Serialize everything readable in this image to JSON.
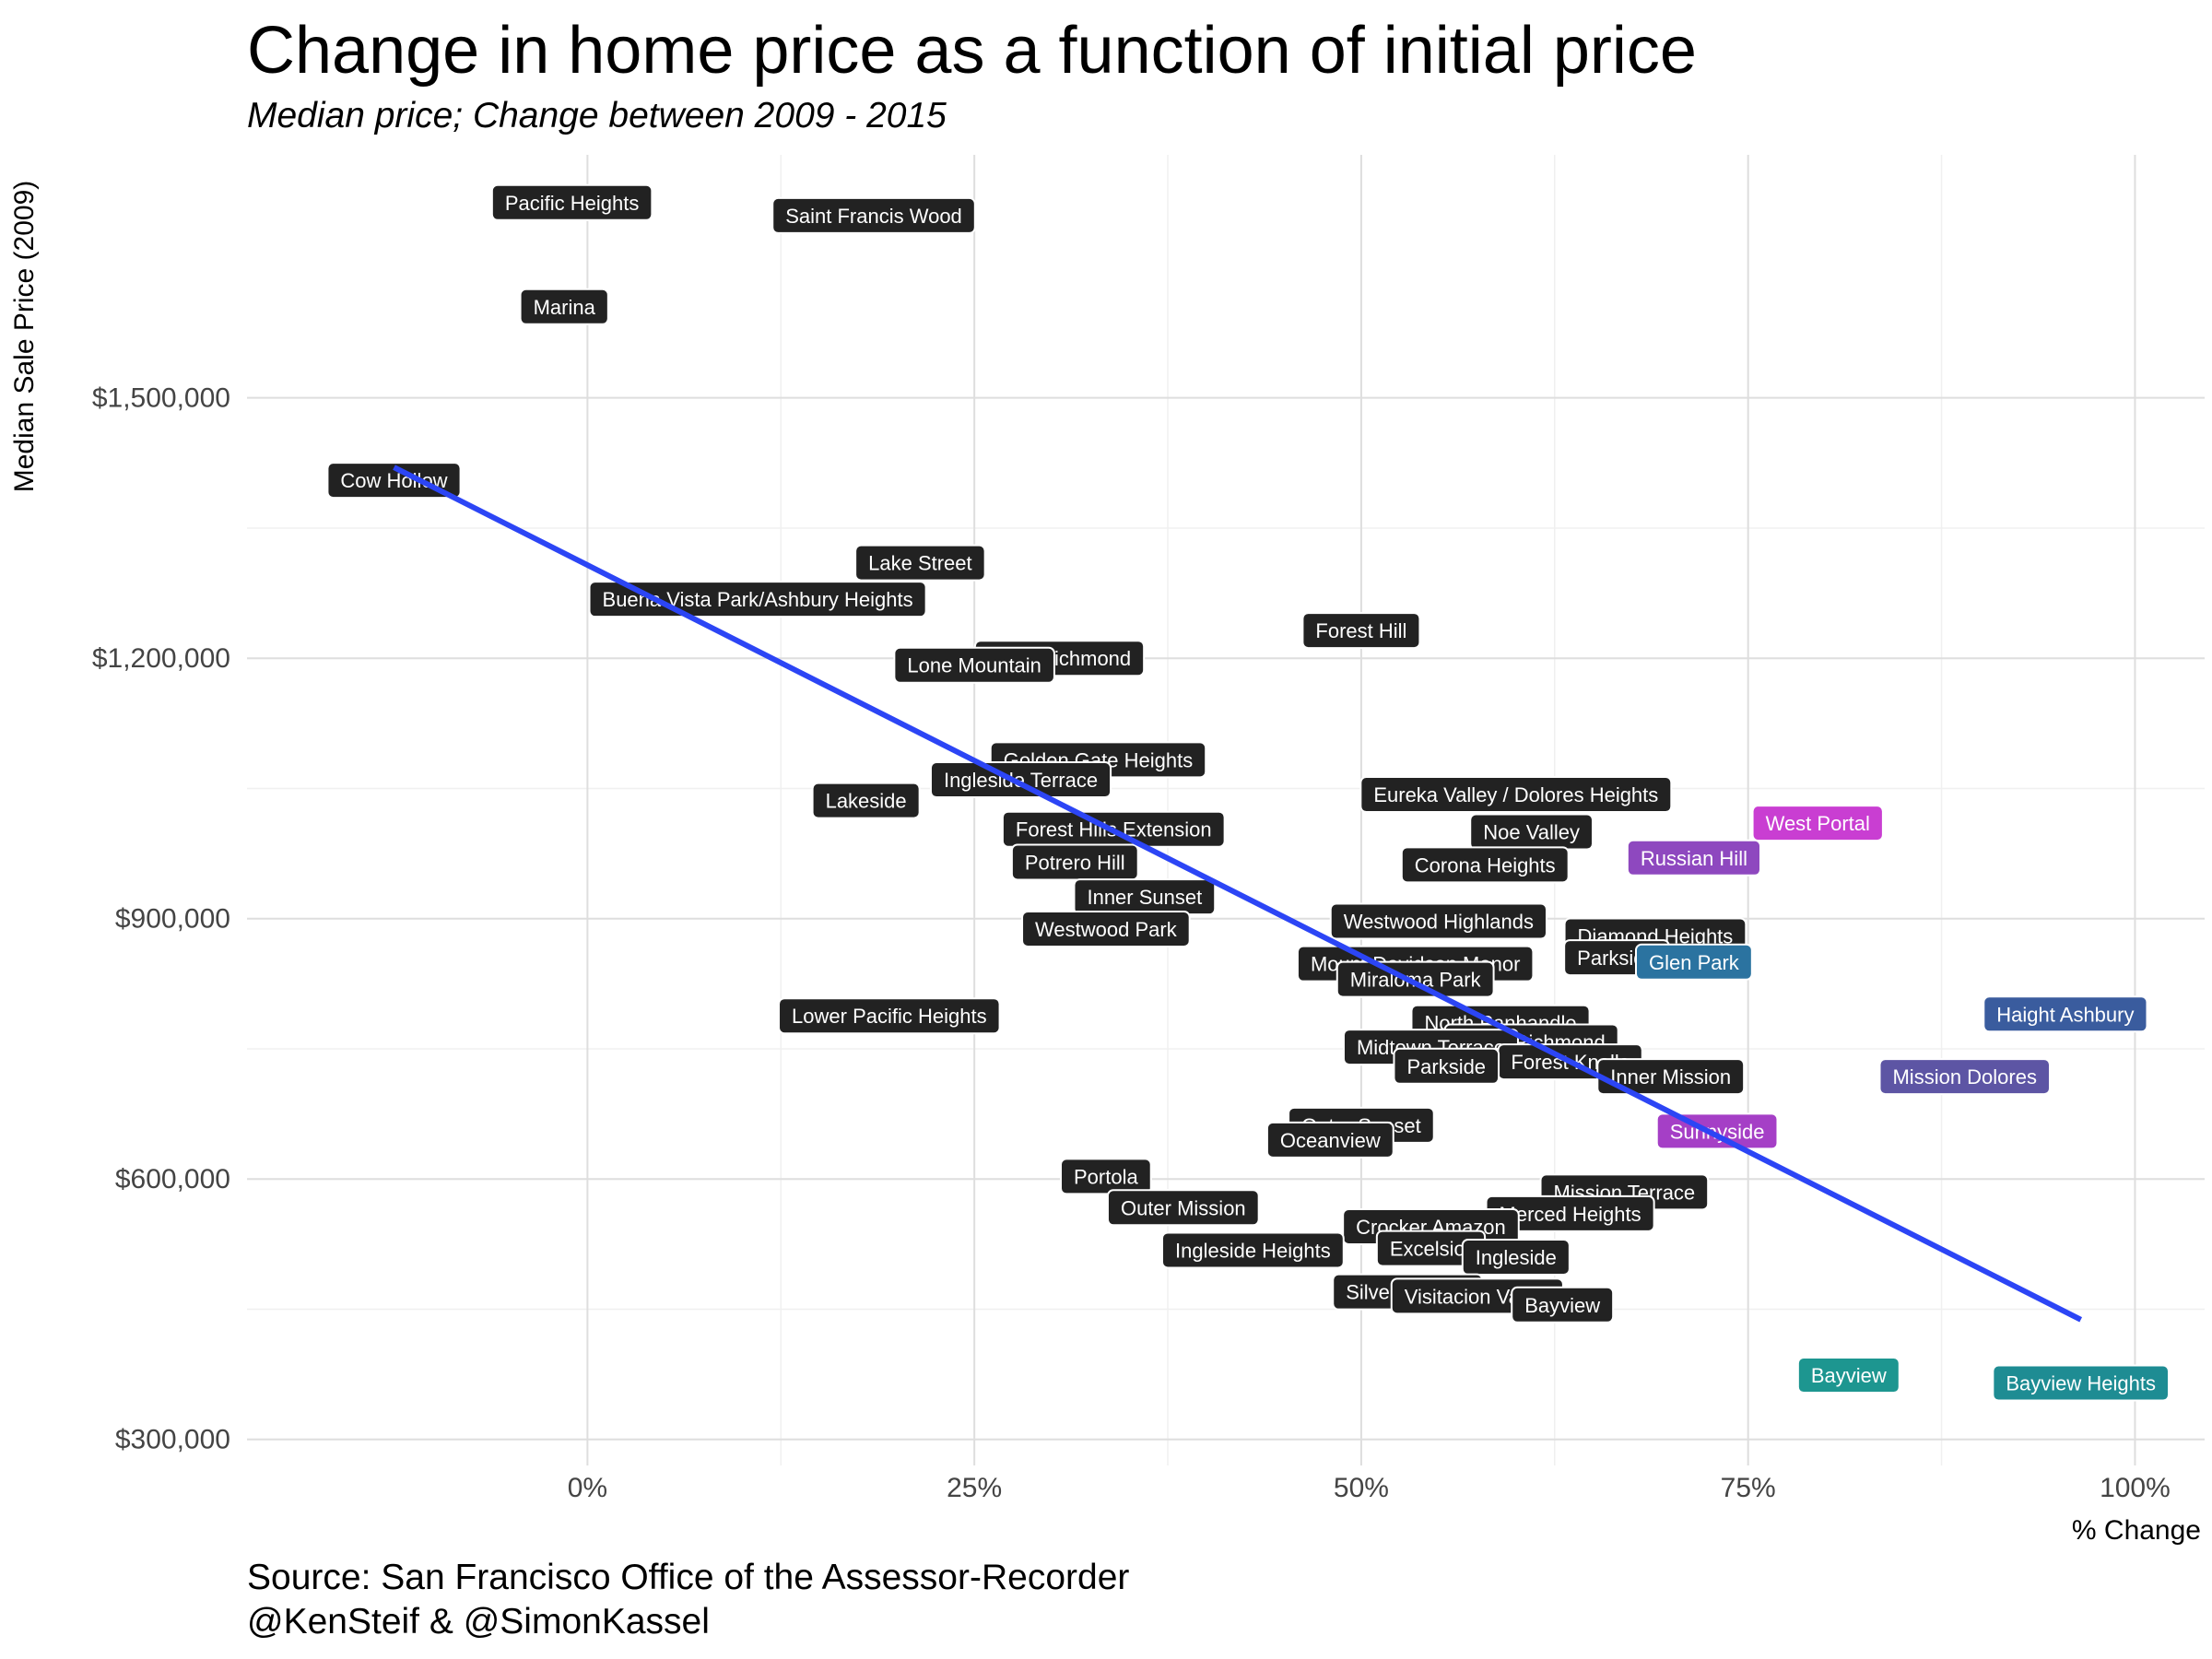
{
  "chart_data": {
    "type": "scatter",
    "title": "Change in home price as a function of initial price",
    "subtitle": "Median price; Change between 2009 - 2015",
    "xlabel": "% Change",
    "ylabel": "Median Sale Price (2009)",
    "xlim": [
      -0.22,
      1.045
    ],
    "ylim": [
      270000,
      1780000
    ],
    "x_ticks": [
      0,
      0.25,
      0.5,
      0.75,
      1.0
    ],
    "x_tick_labels": [
      "0%",
      "25%",
      "50%",
      "75%",
      "100%"
    ],
    "y_ticks": [
      300000,
      600000,
      900000,
      1200000,
      1500000
    ],
    "y_tick_labels": [
      "$300,000",
      "$600,000",
      "$900,000",
      "$1,200,000",
      "$1,500,000"
    ],
    "grid": true,
    "point_style": "labels",
    "trend_line": {
      "color": "#2C45F5",
      "points": [
        [
          -0.125,
          1420000
        ],
        [
          0.965,
          438000
        ]
      ]
    },
    "points": [
      {
        "label": "Pacific Heights",
        "x": -0.01,
        "y": 1725000,
        "color": "#222222"
      },
      {
        "label": "Saint Francis Wood",
        "x": 0.185,
        "y": 1710000,
        "color": "#222222"
      },
      {
        "label": "Marina",
        "x": -0.015,
        "y": 1605000,
        "color": "#222222"
      },
      {
        "label": "Cow Hollow",
        "x": -0.125,
        "y": 1405000,
        "color": "#222222"
      },
      {
        "label": "Lake Street",
        "x": 0.215,
        "y": 1310000,
        "color": "#222222"
      },
      {
        "label": "Buena Vista Park/Ashbury Heights",
        "x": 0.11,
        "y": 1268000,
        "color": "#222222"
      },
      {
        "label": "Forest Hill",
        "x": 0.5,
        "y": 1232000,
        "color": "#222222"
      },
      {
        "label": "Inner Richmond",
        "x": 0.305,
        "y": 1200000,
        "color": "#222222"
      },
      {
        "label": "Lone Mountain",
        "x": 0.25,
        "y": 1192000,
        "color": "#222222"
      },
      {
        "label": "Golden Gate Heights",
        "x": 0.33,
        "y": 1083000,
        "color": "#222222"
      },
      {
        "label": "Ingleside Terrace",
        "x": 0.28,
        "y": 1060000,
        "color": "#222222"
      },
      {
        "label": "Lakeside",
        "x": 0.18,
        "y": 1036000,
        "color": "#222222"
      },
      {
        "label": "Eureka Valley / Dolores Heights",
        "x": 0.6,
        "y": 1043000,
        "color": "#222222"
      },
      {
        "label": "Noe Valley",
        "x": 0.61,
        "y": 1000000,
        "color": "#222222"
      },
      {
        "label": "West Portal",
        "x": 0.795,
        "y": 1010000,
        "color": "#C93ED2"
      },
      {
        "label": "Forest Hills Extension",
        "x": 0.34,
        "y": 1003000,
        "color": "#222222"
      },
      {
        "label": "Russian Hill",
        "x": 0.715,
        "y": 970000,
        "color": "#8E48BF"
      },
      {
        "label": "Potrero Hill",
        "x": 0.315,
        "y": 965000,
        "color": "#222222"
      },
      {
        "label": "Corona Heights",
        "x": 0.58,
        "y": 962000,
        "color": "#222222"
      },
      {
        "label": "Inner Sunset",
        "x": 0.36,
        "y": 925000,
        "color": "#222222"
      },
      {
        "label": "Westwood Highlands",
        "x": 0.55,
        "y": 897000,
        "color": "#222222"
      },
      {
        "label": "Westwood Park",
        "x": 0.335,
        "y": 888000,
        "color": "#222222"
      },
      {
        "label": "Diamond Heights",
        "x": 0.69,
        "y": 880000,
        "color": "#222222"
      },
      {
        "label": "Parkside",
        "x": 0.665,
        "y": 855000,
        "color": "#222222"
      },
      {
        "label": "Glen Park",
        "x": 0.715,
        "y": 850000,
        "color": "#2B73A0"
      },
      {
        "label": "Mount Davidson Manor",
        "x": 0.535,
        "y": 848000,
        "color": "#222222"
      },
      {
        "label": "Miraloma Park",
        "x": 0.535,
        "y": 830000,
        "color": "#222222"
      },
      {
        "label": "Haight Ashbury",
        "x": 0.955,
        "y": 790000,
        "color": "#3A5C9E"
      },
      {
        "label": "Lower Pacific Heights",
        "x": 0.195,
        "y": 788000,
        "color": "#222222"
      },
      {
        "label": "North Panhandle",
        "x": 0.59,
        "y": 780000,
        "color": "#222222"
      },
      {
        "label": "Outer Richmond",
        "x": 0.61,
        "y": 758000,
        "color": "#222222"
      },
      {
        "label": "Midtown Terrace",
        "x": 0.545,
        "y": 752000,
        "color": "#222222"
      },
      {
        "label": "Forest Knolls",
        "x": 0.635,
        "y": 735000,
        "color": "#222222"
      },
      {
        "label": "Parkside",
        "x": 0.555,
        "y": 730000,
        "color": "#222222"
      },
      {
        "label": "Inner Mission",
        "x": 0.7,
        "y": 718000,
        "color": "#222222"
      },
      {
        "label": "Mission Dolores",
        "x": 0.89,
        "y": 718000,
        "color": "#5D55A4"
      },
      {
        "label": "Sunnyside",
        "x": 0.73,
        "y": 655000,
        "color": "#A53FC6"
      },
      {
        "label": "Outer Sunset",
        "x": 0.5,
        "y": 662000,
        "color": "#222222"
      },
      {
        "label": "Oceanview",
        "x": 0.48,
        "y": 645000,
        "color": "#222222"
      },
      {
        "label": "Portola",
        "x": 0.335,
        "y": 603000,
        "color": "#222222"
      },
      {
        "label": "Mission Terrace",
        "x": 0.67,
        "y": 585000,
        "color": "#222222"
      },
      {
        "label": "Outer Mission",
        "x": 0.385,
        "y": 567000,
        "color": "#222222"
      },
      {
        "label": "Merced Heights",
        "x": 0.635,
        "y": 560000,
        "color": "#222222"
      },
      {
        "label": "Crocker Amazon",
        "x": 0.545,
        "y": 545000,
        "color": "#222222"
      },
      {
        "label": "Ingleside Heights",
        "x": 0.43,
        "y": 518000,
        "color": "#222222"
      },
      {
        "label": "Excelsior",
        "x": 0.545,
        "y": 520000,
        "color": "#222222"
      },
      {
        "label": "Ingleside",
        "x": 0.6,
        "y": 510000,
        "color": "#222222"
      },
      {
        "label": "Silver Terrace",
        "x": 0.53,
        "y": 470000,
        "color": "#222222"
      },
      {
        "label": "Visitacion Valley",
        "x": 0.575,
        "y": 465000,
        "color": "#222222"
      },
      {
        "label": "Bayview",
        "x": 0.63,
        "y": 455000,
        "color": "#222222"
      },
      {
        "label": "Bayview",
        "x": 0.815,
        "y": 374000,
        "color": "#1D9690"
      },
      {
        "label": "Bayview Heights",
        "x": 0.965,
        "y": 365000,
        "color": "#1E8C93"
      }
    ]
  },
  "source": "Source: San Francisco Office of the Assessor-Recorder",
  "credit": "@KenSteif & @SimonKassel"
}
